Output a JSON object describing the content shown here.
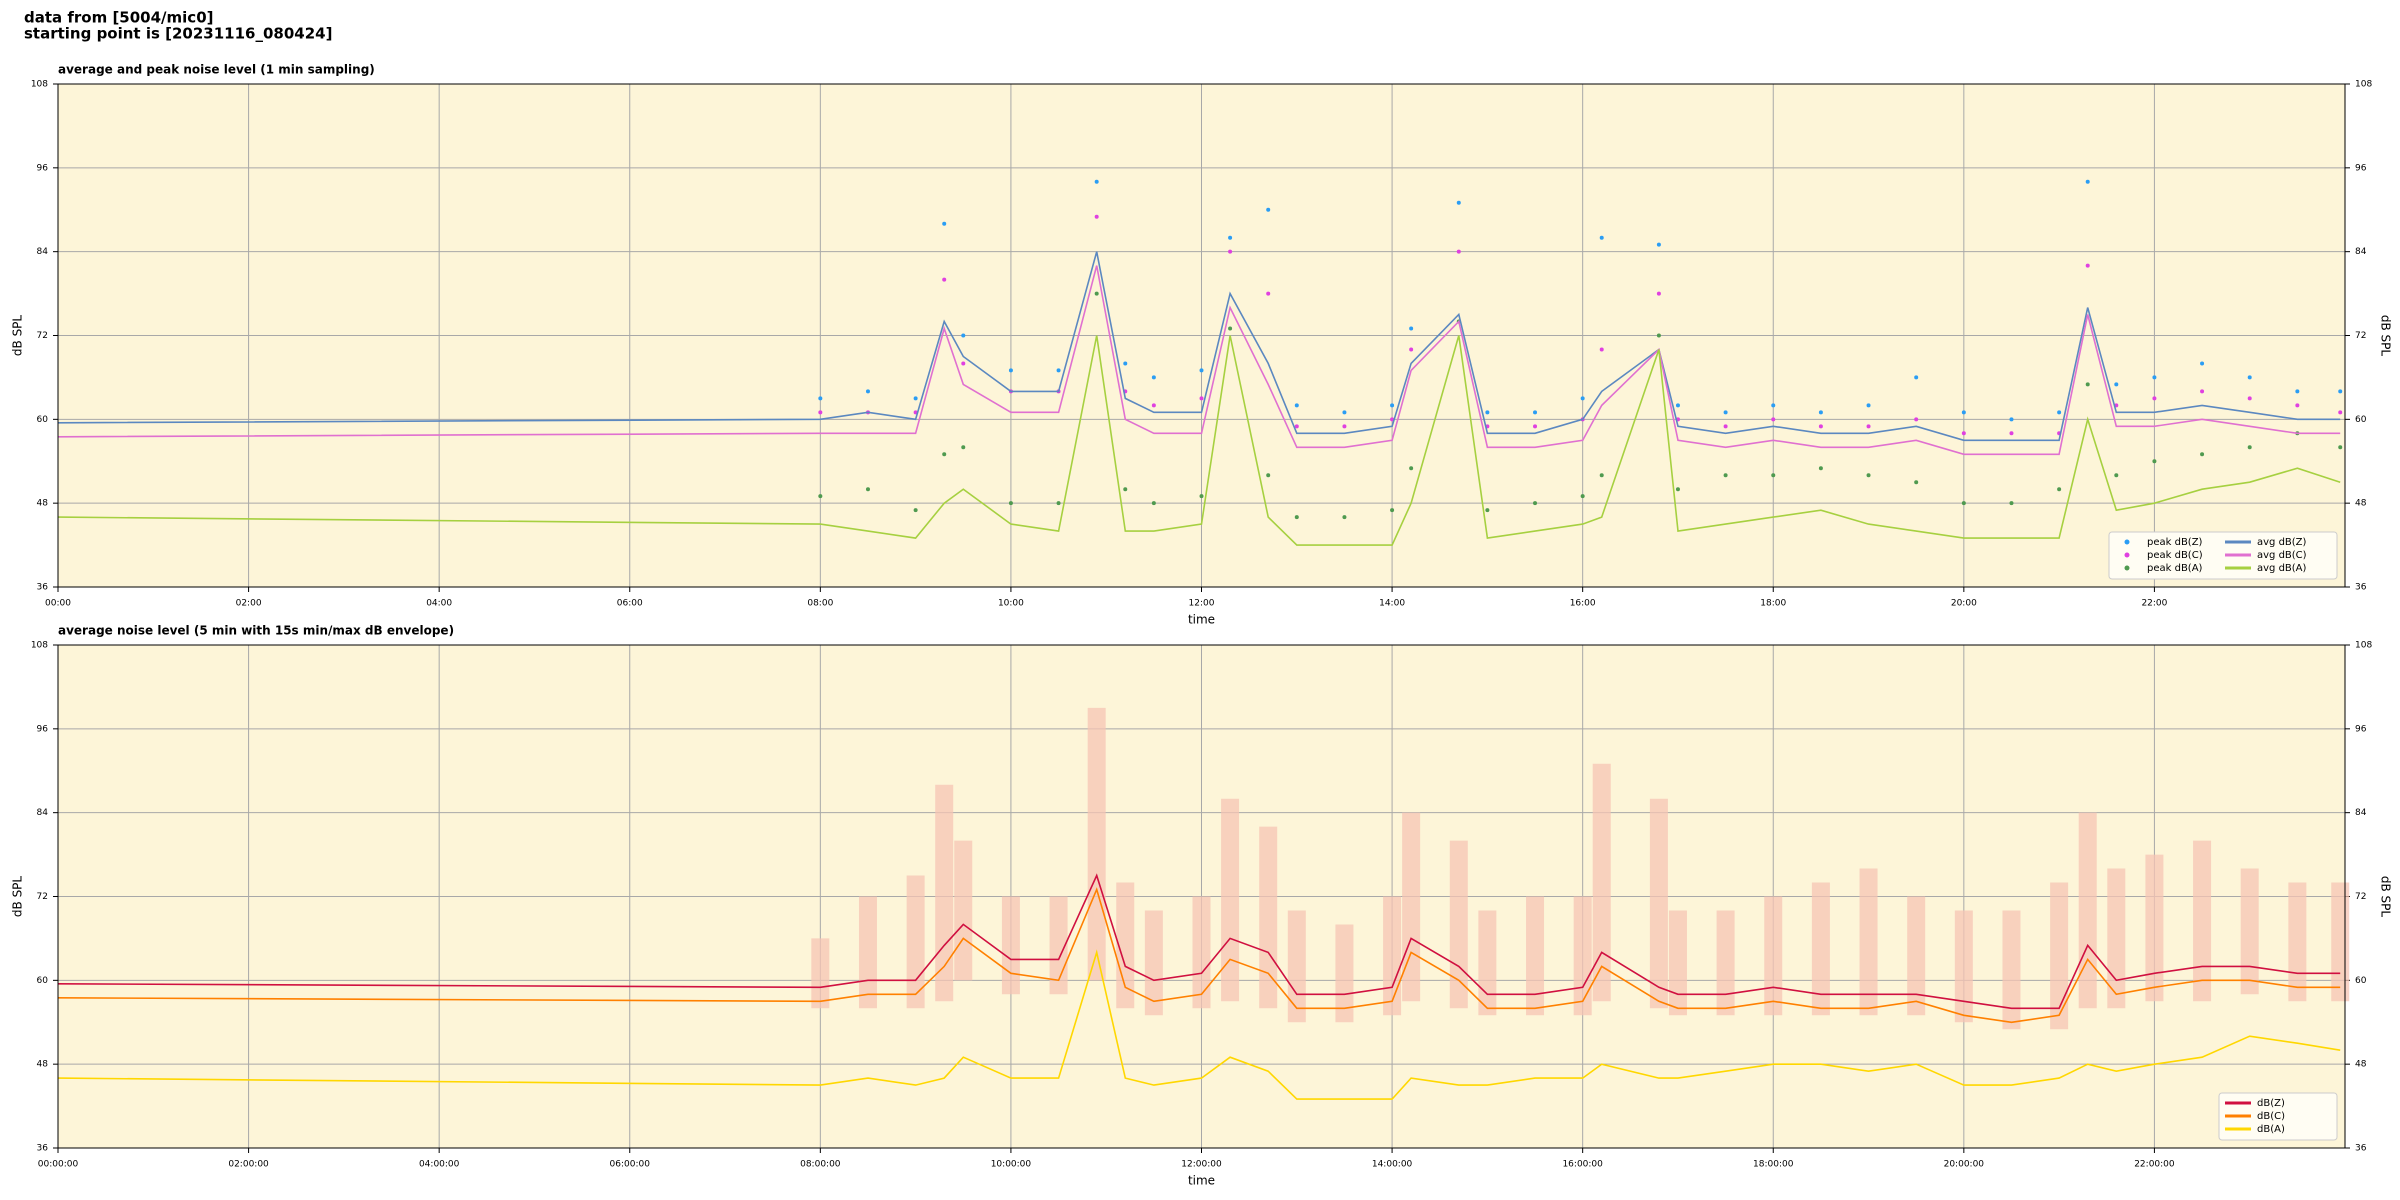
{
  "header": {
    "line1": "data from [5004/mic0]",
    "line2": "starting point is [20231116_080424]"
  },
  "chart_data": [
    {
      "type": "line",
      "title": "average and peak noise level (1 min sampling)",
      "xlabel": "time",
      "ylabel": "dB SPL",
      "xlim": [
        0,
        24
      ],
      "ylim": [
        36,
        108
      ],
      "yticks": [
        36,
        48,
        60,
        72,
        84,
        96,
        108
      ],
      "xticks": [
        {
          "value": 0,
          "label": "00:00"
        },
        {
          "value": 2,
          "label": "02:00"
        },
        {
          "value": 4,
          "label": "04:00"
        },
        {
          "value": 6,
          "label": "06:00"
        },
        {
          "value": 8,
          "label": "08:00"
        },
        {
          "value": 10,
          "label": "10:00"
        },
        {
          "value": 12,
          "label": "12:00"
        },
        {
          "value": 14,
          "label": "14:00"
        },
        {
          "value": 16,
          "label": "16:00"
        },
        {
          "value": 18,
          "label": "18:00"
        },
        {
          "value": 20,
          "label": "20:00"
        },
        {
          "value": 22,
          "label": "22:00"
        }
      ],
      "grid": true,
      "legend": "lower right",
      "legend_columns": 2,
      "x": [
        0,
        8.0,
        8.5,
        9.0,
        9.3,
        9.5,
        10.0,
        10.5,
        10.9,
        11.2,
        11.5,
        12.0,
        12.3,
        12.7,
        13.0,
        13.5,
        14.0,
        14.2,
        14.7,
        15.0,
        15.5,
        16.0,
        16.2,
        16.8,
        17.0,
        17.5,
        18.0,
        18.5,
        19.0,
        19.5,
        20.0,
        20.5,
        21.0,
        21.3,
        21.6,
        22.0,
        22.5,
        23.0,
        23.5,
        23.95
      ],
      "series": [
        {
          "name": "peak dB(Z)",
          "type": "scatter",
          "color": "#2a9df4",
          "values": [
            null,
            63,
            64,
            63,
            88,
            72,
            67,
            67,
            94,
            68,
            66,
            67,
            86,
            90,
            62,
            61,
            62,
            73,
            91,
            61,
            61,
            63,
            86,
            85,
            62,
            61,
            62,
            61,
            62,
            66,
            61,
            60,
            61,
            94,
            65,
            66,
            68,
            66,
            64,
            64
          ]
        },
        {
          "name": "peak dB(C)",
          "type": "scatter",
          "color": "#e040e0",
          "values": [
            null,
            61,
            61,
            61,
            80,
            68,
            64,
            64,
            89,
            64,
            62,
            63,
            84,
            78,
            59,
            59,
            60,
            70,
            84,
            59,
            59,
            60,
            70,
            78,
            60,
            59,
            60,
            59,
            59,
            60,
            58,
            58,
            58,
            82,
            62,
            63,
            64,
            63,
            62,
            61
          ]
        },
        {
          "name": "peak dB(A)",
          "type": "scatter",
          "color": "#4f9a4f",
          "values": [
            null,
            49,
            50,
            47,
            55,
            56,
            48,
            48,
            78,
            50,
            48,
            49,
            73,
            52,
            46,
            46,
            47,
            53,
            74,
            47,
            48,
            49,
            52,
            72,
            50,
            52,
            52,
            53,
            52,
            51,
            48,
            48,
            50,
            65,
            52,
            54,
            55,
            56,
            58,
            56
          ]
        },
        {
          "name": "avg dB(Z)",
          "type": "line",
          "color": "#5b88c0",
          "values": [
            59.5,
            60,
            61,
            60,
            74,
            69,
            64,
            64,
            84,
            63,
            61,
            61,
            78,
            68,
            58,
            58,
            59,
            68,
            75,
            58,
            58,
            60,
            64,
            70,
            59,
            58,
            59,
            58,
            58,
            59,
            57,
            57,
            57,
            76,
            61,
            61,
            62,
            61,
            60,
            60
          ]
        },
        {
          "name": "avg dB(C)",
          "type": "line",
          "color": "#e070d0",
          "values": [
            57.5,
            58,
            58,
            58,
            73,
            65,
            61,
            61,
            82,
            60,
            58,
            58,
            76,
            65,
            56,
            56,
            57,
            67,
            74,
            56,
            56,
            57,
            62,
            70,
            57,
            56,
            57,
            56,
            56,
            57,
            55,
            55,
            55,
            75,
            59,
            59,
            60,
            59,
            58,
            58
          ]
        },
        {
          "name": "avg dB(A)",
          "type": "line",
          "color": "#a6d040",
          "values": [
            46,
            45,
            44,
            43,
            48,
            50,
            45,
            44,
            72,
            44,
            44,
            45,
            72,
            46,
            42,
            42,
            42,
            48,
            72,
            43,
            44,
            45,
            46,
            70,
            44,
            45,
            46,
            47,
            45,
            44,
            43,
            43,
            43,
            60,
            47,
            48,
            50,
            51,
            53,
            51
          ]
        }
      ]
    },
    {
      "type": "line",
      "title": "average noise level (5 min with 15s min/max dB envelope)",
      "xlabel": "time",
      "ylabel": "dB SPL",
      "xlim": [
        0,
        24
      ],
      "ylim": [
        36,
        108
      ],
      "yticks": [
        36,
        48,
        60,
        72,
        84,
        96,
        108
      ],
      "xticks": [
        {
          "value": 0,
          "label": "00:00:00"
        },
        {
          "value": 2,
          "label": "02:00:00"
        },
        {
          "value": 4,
          "label": "04:00:00"
        },
        {
          "value": 6,
          "label": "06:00:00"
        },
        {
          "value": 8,
          "label": "08:00:00"
        },
        {
          "value": 10,
          "label": "10:00:00"
        },
        {
          "value": 12,
          "label": "12:00:00"
        },
        {
          "value": 14,
          "label": "14:00:00"
        },
        {
          "value": 16,
          "label": "16:00:00"
        },
        {
          "value": 18,
          "label": "18:00:00"
        },
        {
          "value": 20,
          "label": "20:00:00"
        },
        {
          "value": 22,
          "label": "22:00:00"
        }
      ],
      "grid": true,
      "legend": "lower right",
      "legend_columns": 1,
      "x": [
        0,
        8.0,
        8.5,
        9.0,
        9.3,
        9.5,
        10.0,
        10.5,
        10.9,
        11.2,
        11.5,
        12.0,
        12.3,
        12.7,
        13.0,
        13.5,
        14.0,
        14.2,
        14.7,
        15.0,
        15.5,
        16.0,
        16.2,
        16.8,
        17.0,
        17.5,
        18.0,
        18.5,
        19.0,
        19.5,
        20.0,
        20.5,
        21.0,
        21.3,
        21.6,
        22.0,
        22.5,
        23.0,
        23.5,
        23.95
      ],
      "envelope": {
        "color": "#f6c4b4",
        "lower": [
          null,
          56,
          56,
          56,
          57,
          60,
          58,
          58,
          60,
          56,
          55,
          56,
          57,
          56,
          54,
          54,
          55,
          57,
          56,
          55,
          55,
          55,
          57,
          56,
          55,
          55,
          55,
          55,
          55,
          55,
          54,
          53,
          53,
          56,
          56,
          57,
          57,
          58,
          57,
          57
        ],
        "upper": [
          null,
          66,
          72,
          75,
          88,
          80,
          72,
          72,
          99,
          74,
          70,
          72,
          86,
          82,
          70,
          68,
          72,
          84,
          80,
          70,
          72,
          72,
          91,
          86,
          70,
          70,
          72,
          74,
          76,
          72,
          70,
          70,
          74,
          84,
          76,
          78,
          80,
          76,
          74,
          74
        ]
      },
      "series": [
        {
          "name": "dB(Z)",
          "type": "line",
          "color": "#d01040",
          "values": [
            59.5,
            59,
            60,
            60,
            65,
            68,
            63,
            63,
            75,
            62,
            60,
            61,
            66,
            64,
            58,
            58,
            59,
            66,
            62,
            58,
            58,
            59,
            64,
            59,
            58,
            58,
            59,
            58,
            58,
            58,
            57,
            56,
            56,
            65,
            60,
            61,
            62,
            62,
            61,
            61
          ]
        },
        {
          "name": "dB(C)",
          "type": "line",
          "color": "#ff8000",
          "values": [
            57.5,
            57,
            58,
            58,
            62,
            66,
            61,
            60,
            73,
            59,
            57,
            58,
            63,
            61,
            56,
            56,
            57,
            64,
            60,
            56,
            56,
            57,
            62,
            57,
            56,
            56,
            57,
            56,
            56,
            57,
            55,
            54,
            55,
            63,
            58,
            59,
            60,
            60,
            59,
            59
          ]
        },
        {
          "name": "dB(A)",
          "type": "line",
          "color": "#ffd700",
          "values": [
            46,
            45,
            46,
            45,
            46,
            49,
            46,
            46,
            64,
            46,
            45,
            46,
            49,
            47,
            43,
            43,
            43,
            46,
            45,
            45,
            46,
            46,
            48,
            46,
            46,
            47,
            48,
            48,
            47,
            48,
            45,
            45,
            46,
            48,
            47,
            48,
            49,
            52,
            51,
            50
          ]
        }
      ]
    }
  ]
}
